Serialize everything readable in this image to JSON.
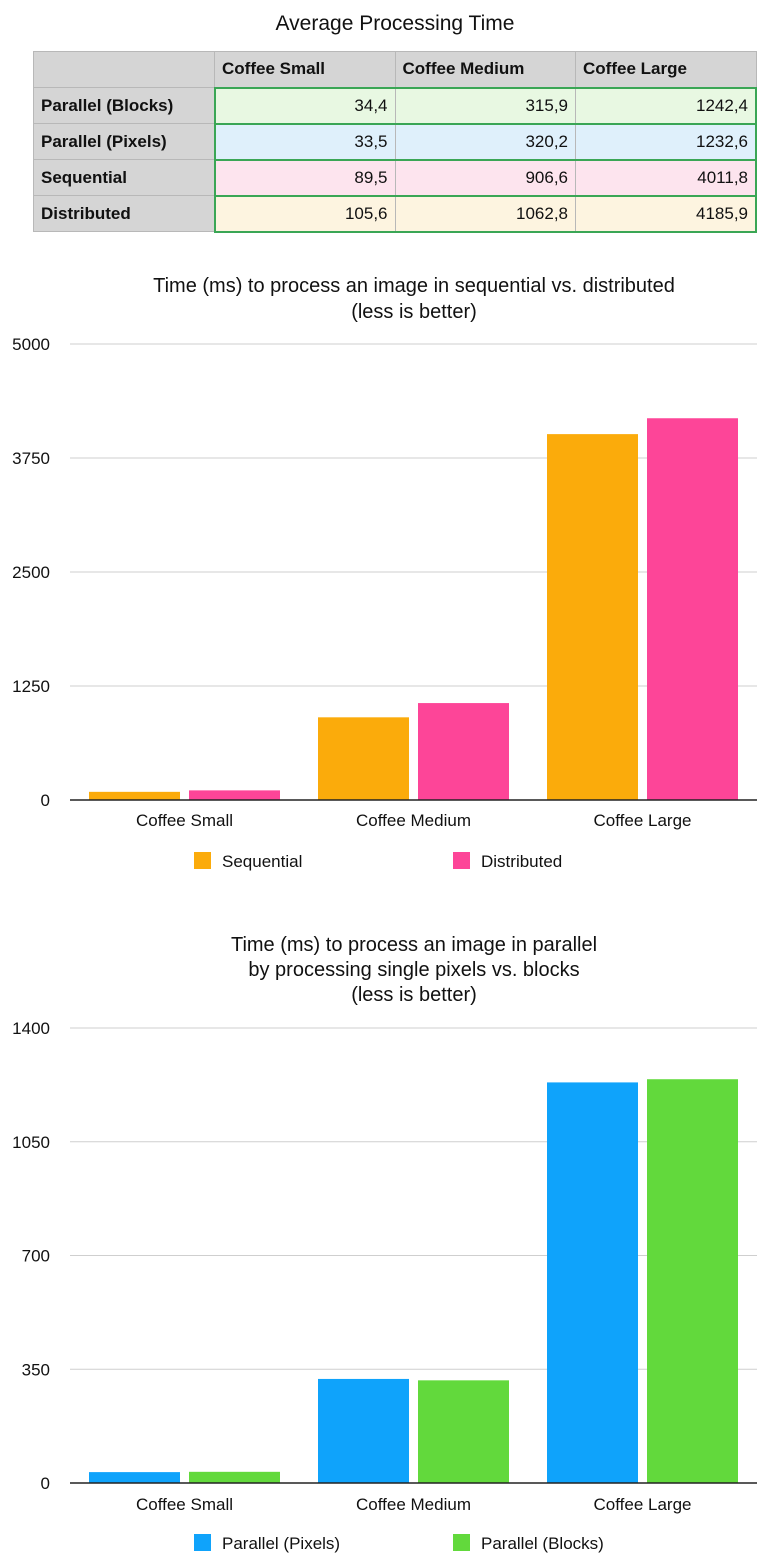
{
  "table": {
    "title": "Average Processing Time",
    "columns": [
      "",
      "Coffee Small",
      "Coffee Medium",
      "Coffee Large"
    ],
    "rows": [
      {
        "label": "Parallel (Blocks)",
        "bg": "#e8f8e2",
        "values": [
          "34,4",
          "315,9",
          "1242,4"
        ]
      },
      {
        "label": "Parallel (Pixels)",
        "bg": "#dff0fb",
        "values": [
          "33,5",
          "320,2",
          "1232,6"
        ]
      },
      {
        "label": "Sequential",
        "bg": "#fde4ee",
        "values": [
          "89,5",
          "906,6",
          "4011,8"
        ]
      },
      {
        "label": "Distributed",
        "bg": "#fdf4e0",
        "values": [
          "105,6",
          "1062,8",
          "4185,9"
        ]
      }
    ]
  },
  "chart_data": [
    {
      "type": "bar",
      "title": [
        "Time (ms) to process an image in sequential vs. distributed",
        "(less is better)"
      ],
      "categories": [
        "Coffee Small",
        "Coffee Medium",
        "Coffee Large"
      ],
      "series": [
        {
          "name": "Sequential",
          "color": "#fbab0b",
          "values": [
            89.5,
            906.6,
            4011.8
          ]
        },
        {
          "name": "Distributed",
          "color": "#fd4598",
          "values": [
            105.6,
            1062.8,
            4185.9
          ]
        }
      ],
      "ylim": [
        0,
        5000
      ],
      "yticks": [
        0,
        1250,
        2500,
        3750,
        5000
      ],
      "grid": true,
      "legend": "bottom"
    },
    {
      "type": "bar",
      "title": [
        "Time (ms) to process an image in parallel",
        "by processing single pixels vs. blocks",
        "(less is better)"
      ],
      "categories": [
        "Coffee Small",
        "Coffee Medium",
        "Coffee Large"
      ],
      "series": [
        {
          "name": "Parallel (Pixels)",
          "color": "#0fa3fb",
          "values": [
            33.5,
            320.2,
            1232.6
          ]
        },
        {
          "name": "Parallel (Blocks)",
          "color": "#62d93c",
          "values": [
            34.4,
            315.9,
            1242.4
          ]
        }
      ],
      "ylim": [
        0,
        1400
      ],
      "yticks": [
        0,
        350,
        700,
        1050,
        1400
      ],
      "grid": true,
      "legend": "bottom"
    }
  ]
}
